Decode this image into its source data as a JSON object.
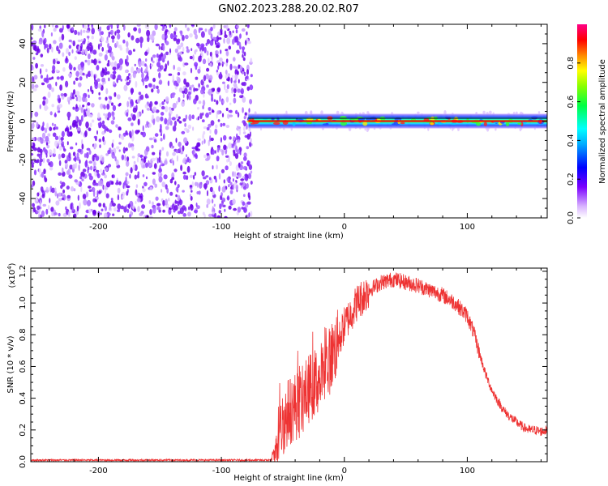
{
  "title": "GN02.2023.288.20.02.R07",
  "colors": {
    "snr_line": "#ee3333",
    "scatter": "#7a1cf0",
    "axis": "#000000"
  },
  "chart_data": [
    {
      "type": "heatmap",
      "title": "GN02.2023.288.20.02.R07",
      "xlabel": "Height of straight line (km)",
      "ylabel": "Frequency (Hz)",
      "xlim": [
        -255,
        165
      ],
      "ylim": [
        -50,
        50
      ],
      "xticks": [
        -200,
        -100,
        0,
        100
      ],
      "yticks": [
        40,
        20,
        0,
        -20,
        -40
      ],
      "noise_region_x": [
        -255,
        -78
      ],
      "signal_region_x": [
        -78,
        165
      ],
      "signal_frequency_hz": 0,
      "colorbar": {
        "label": "Normalized spectral amplitude",
        "range": [
          0,
          1
        ],
        "ticks": [
          "0.0",
          "0.2",
          "0.4",
          "0.6",
          "0.8"
        ]
      },
      "legend": "none",
      "grid": false
    },
    {
      "type": "line",
      "xlabel": "Height of straight line (km)",
      "ylabel": "SNR (10 * v/v)",
      "y_multiplier_label": "(x10",
      "y_multiplier_exp": "4",
      "xlim": [
        -255,
        165
      ],
      "ylim": [
        0,
        1.22
      ],
      "xticks": [
        -200,
        -100,
        0,
        100
      ],
      "yticks": [
        "0.0",
        "0.2",
        "0.4",
        "0.6",
        "0.8",
        "1.0",
        "1.2"
      ],
      "series": [
        {
          "x": [
            -255,
            -60,
            -55,
            -50,
            -45,
            -40,
            -35,
            -30,
            -25,
            -20,
            -15,
            -10,
            -5,
            0,
            10,
            20,
            30,
            40,
            50,
            60,
            70,
            80,
            90,
            100,
            105,
            110,
            115,
            120,
            125,
            130,
            135,
            140,
            145,
            150,
            155,
            160,
            165
          ],
          "values": [
            0.01,
            0.01,
            0.08,
            0.25,
            0.32,
            0.35,
            0.37,
            0.45,
            0.49,
            0.52,
            0.57,
            0.68,
            0.75,
            0.86,
            1.0,
            1.08,
            1.13,
            1.15,
            1.13,
            1.11,
            1.08,
            1.05,
            1.0,
            0.92,
            0.82,
            0.68,
            0.55,
            0.45,
            0.38,
            0.32,
            0.28,
            0.25,
            0.22,
            0.2,
            0.2,
            0.19,
            0.2
          ]
        }
      ],
      "legend": "none",
      "grid": false
    }
  ]
}
